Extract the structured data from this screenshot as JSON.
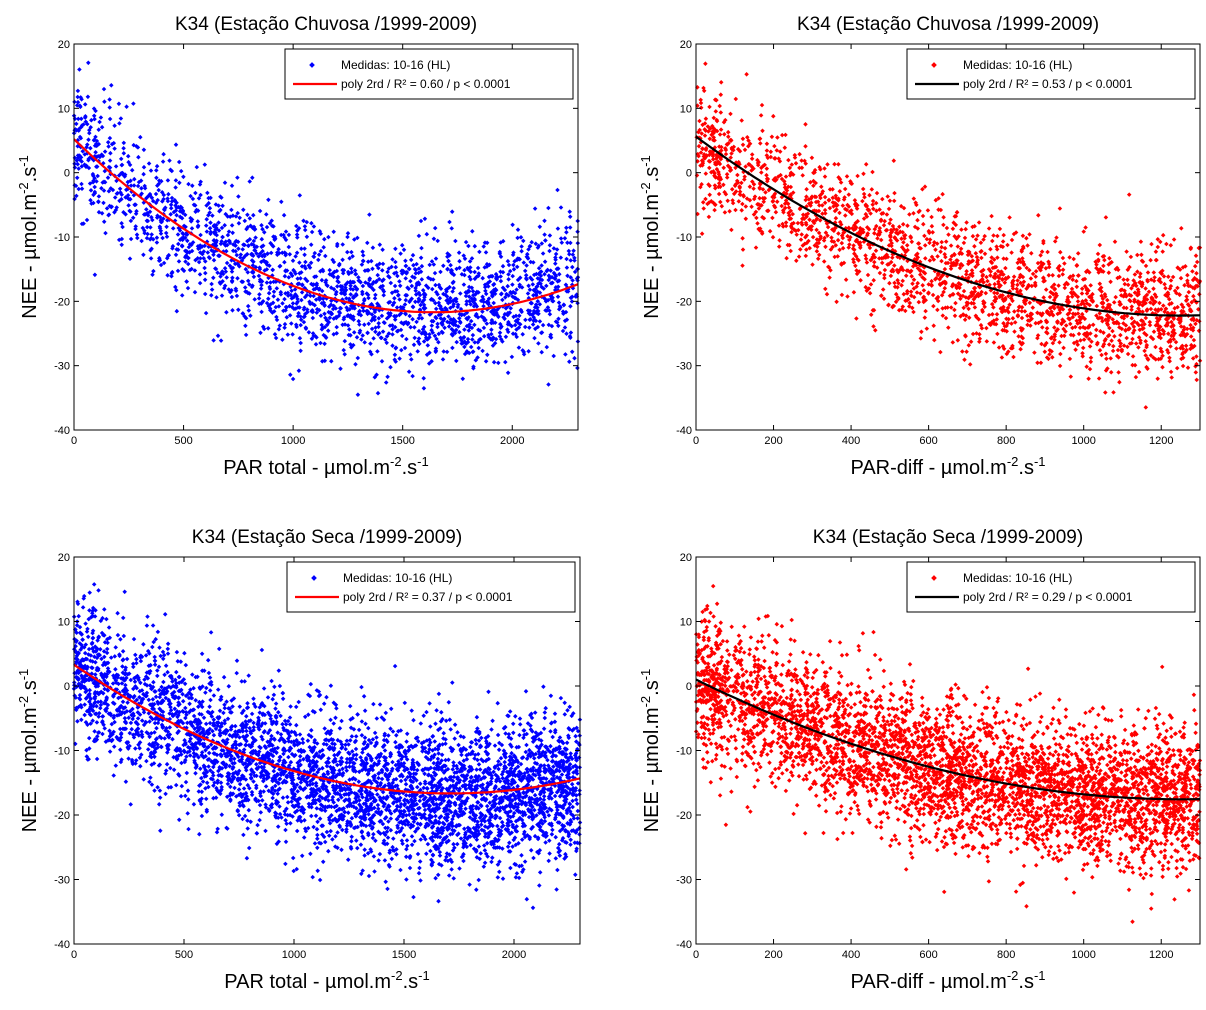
{
  "chart_data": [
    {
      "type": "scatter",
      "title": "K34 (Estação Chuvosa /1999-2009)",
      "xlabel": "PAR total - µmol.m",
      "xlabel_exp1": "-2",
      "xlabel_mid": ".s",
      "xlabel_exp2": "-1",
      "ylabel": "NEE - µmol.m",
      "ylabel_exp1": "-2",
      "ylabel_mid": ".s",
      "ylabel_exp2": "-1",
      "xlim": [
        0,
        2300
      ],
      "ylim": [
        -40,
        20
      ],
      "xticks": [
        0,
        500,
        1000,
        1500,
        2000
      ],
      "yticks": [
        -40,
        -30,
        -20,
        -10,
        0,
        10,
        20
      ],
      "legend_position": "top-right",
      "grid": false,
      "series": [
        {
          "name": "Medidas: 10-16 (HL)",
          "kind": "points",
          "color": "#0000ff",
          "n": 2200,
          "y_start": 5,
          "y_min": -21,
          "x_at_min": 1600,
          "spread": 5
        },
        {
          "name": "poly 2rd / R² = 0.60 / p < 0.0001",
          "kind": "fit",
          "color": "#ff0000",
          "poly_coeffs": [
            5.2,
            -0.0328,
            1e-05
          ]
        }
      ]
    },
    {
      "type": "scatter",
      "title": "K34 (Estação Chuvosa /1999-2009)",
      "xlabel": "PAR-diff - µmol.m",
      "xlabel_exp1": "-2",
      "xlabel_mid": ".s",
      "xlabel_exp2": "-1",
      "ylabel": "NEE - µmol.m",
      "ylabel_exp1": "-2",
      "ylabel_mid": ".s",
      "ylabel_exp2": "-1",
      "xlim": [
        0,
        1300
      ],
      "ylim": [
        -40,
        20
      ],
      "xticks": [
        0,
        200,
        400,
        600,
        800,
        1000,
        1200
      ],
      "yticks": [
        -40,
        -30,
        -20,
        -10,
        0,
        10,
        20
      ],
      "legend_position": "top-right",
      "grid": false,
      "series": [
        {
          "name": "Medidas: 10-16 (HL)",
          "kind": "points",
          "color": "#ff0000",
          "n": 2200,
          "y_start": 5,
          "y_min": -22,
          "x_at_min": 1250,
          "spread": 5
        },
        {
          "name": "poly 2rd / R² = 0.53 / p < 0.0001",
          "kind": "fit",
          "color": "#000000",
          "poly_coeffs": [
            5.6,
            -0.0445,
            1.78e-05
          ]
        }
      ]
    },
    {
      "type": "scatter",
      "title": "K34 (Estação Seca /1999-2009)",
      "xlabel": "PAR total - µmol.m",
      "xlabel_exp1": "-2",
      "xlabel_mid": ".s",
      "xlabel_exp2": "-1",
      "ylabel": "NEE - µmol.m",
      "ylabel_exp1": "-2",
      "ylabel_mid": ".s",
      "ylabel_exp2": "-1",
      "xlim": [
        0,
        2300
      ],
      "ylim": [
        -40,
        20
      ],
      "xticks": [
        0,
        500,
        1000,
        1500,
        2000
      ],
      "yticks": [
        -40,
        -30,
        -20,
        -10,
        0,
        10,
        20
      ],
      "legend_position": "top-right",
      "grid": false,
      "series": [
        {
          "name": "Medidas: 10-16 (HL)",
          "kind": "points",
          "color": "#0000ff",
          "n": 4200,
          "y_start": 3,
          "y_min": -17,
          "x_at_min": 1750,
          "spread": 5.5
        },
        {
          "name": "poly 2rd / R² = 0.37 / p < 0.0001",
          "kind": "fit",
          "color": "#ff0000",
          "poly_coeffs": [
            3.3,
            -0.0233,
            6.8e-06
          ]
        }
      ]
    },
    {
      "type": "scatter",
      "title": "K34 (Estação Seca /1999-2009)",
      "xlabel": "PAR-diff - µmol.m",
      "xlabel_exp1": "-2",
      "xlabel_mid": ".s",
      "xlabel_exp2": "-1",
      "ylabel": "NEE - µmol.m",
      "ylabel_exp1": "-2",
      "ylabel_mid": ".s",
      "ylabel_exp2": "-1",
      "xlim": [
        0,
        1300
      ],
      "ylim": [
        -40,
        20
      ],
      "xticks": [
        0,
        200,
        400,
        600,
        800,
        1000,
        1200
      ],
      "yticks": [
        -40,
        -30,
        -20,
        -10,
        0,
        10,
        20
      ],
      "legend_position": "top-right",
      "grid": false,
      "series": [
        {
          "name": "Medidas: 10-16 (HL)",
          "kind": "points",
          "color": "#ff0000",
          "n": 4200,
          "y_start": 1,
          "y_min": -17.5,
          "x_at_min": 1250,
          "spread": 5.5
        },
        {
          "name": "poly 2rd / R² = 0.29 / p < 0.0001",
          "kind": "fit",
          "color": "#000000",
          "poly_coeffs": [
            1.0,
            -0.0296,
            1.18e-05
          ]
        }
      ]
    }
  ]
}
